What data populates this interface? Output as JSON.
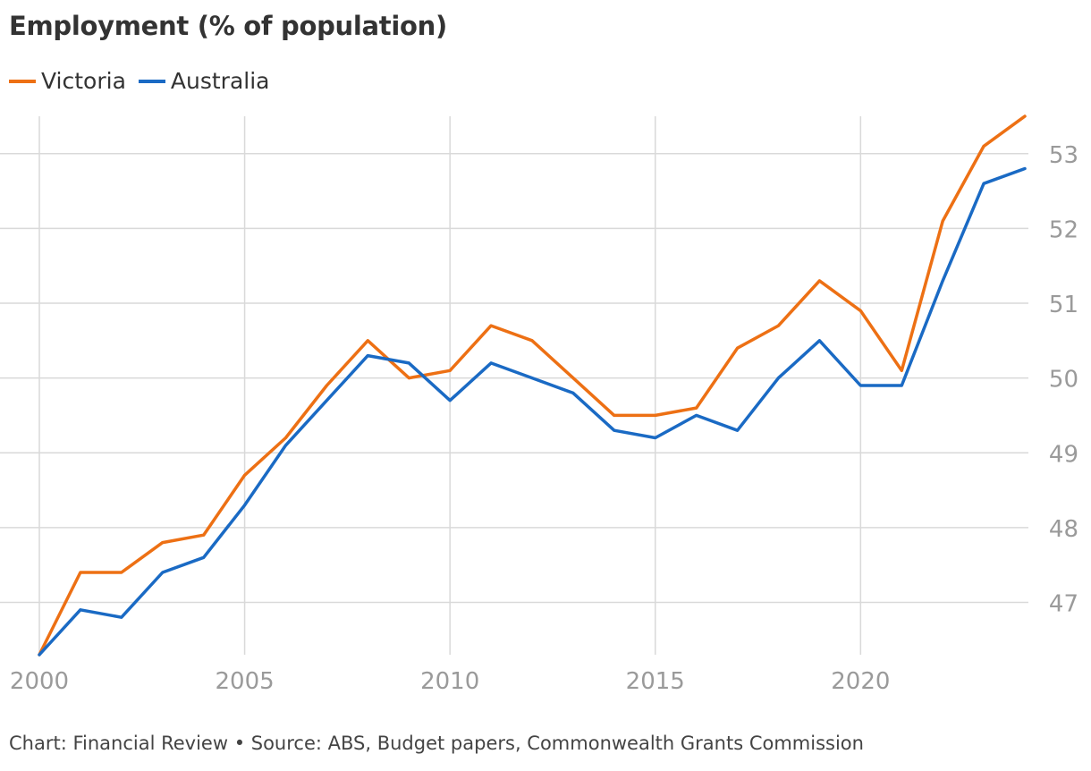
{
  "chart_data": {
    "type": "line",
    "title": "Employment (% of population)",
    "xlabel": "",
    "ylabel": "",
    "x": [
      2000,
      2001,
      2002,
      2003,
      2004,
      2005,
      2006,
      2007,
      2008,
      2009,
      2010,
      2011,
      2012,
      2013,
      2014,
      2015,
      2016,
      2017,
      2018,
      2019,
      2020,
      2021,
      2022,
      2023,
      2024
    ],
    "series": [
      {
        "name": "Victoria",
        "color": "#ed7014",
        "values": [
          46.3,
          47.4,
          47.4,
          47.8,
          47.9,
          48.7,
          49.2,
          49.9,
          50.5,
          50.0,
          50.1,
          50.7,
          50.5,
          50.0,
          49.5,
          49.5,
          49.6,
          50.4,
          50.7,
          51.3,
          50.9,
          50.1,
          52.1,
          53.1,
          53.5
        ]
      },
      {
        "name": "Australia",
        "color": "#1a6ac4",
        "values": [
          46.3,
          46.9,
          46.8,
          47.4,
          47.6,
          48.3,
          49.1,
          49.7,
          50.3,
          50.2,
          49.7,
          50.2,
          50.0,
          49.8,
          49.3,
          49.2,
          49.5,
          49.3,
          50.0,
          50.5,
          49.9,
          49.9,
          51.3,
          52.6,
          52.8
        ]
      }
    ],
    "xticks": [
      2000,
      2005,
      2010,
      2015,
      2020
    ],
    "yticks": [
      47,
      48,
      49,
      50,
      51,
      52,
      53
    ],
    "xlim": [
      2000,
      2024
    ],
    "ylim": [
      46.3,
      53.5
    ],
    "grid": true,
    "legend_position": "top-left",
    "y_axis_side": "right"
  },
  "footer": {
    "source": "Chart: Financial Review • Source: ABS, Budget papers, Commonwealth Grants Commission"
  },
  "colors": {
    "grid": "#d9d9d9",
    "tick_label": "#9a9a9a"
  }
}
